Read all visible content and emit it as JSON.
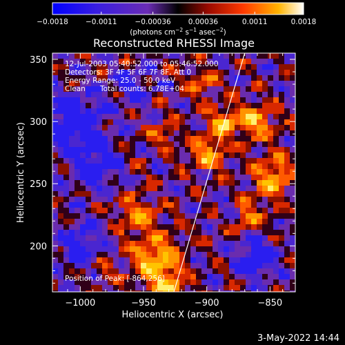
{
  "chart_data": {
    "type": "heatmap",
    "title": "Reconstructed RHESSI Image",
    "xlabel": "Heliocentric X (arcsec)",
    "ylabel": "Heliocentric Y (arcsec)",
    "xlim": [
      -1022,
      -830
    ],
    "ylim": [
      163,
      355
    ],
    "x_ticks": [
      -1000,
      -950,
      -900,
      -850
    ],
    "y_ticks": [
      200,
      250,
      300,
      350
    ],
    "x_tick_labels": [
      "−1000",
      "−950",
      "−900",
      "−850"
    ],
    "y_tick_labels": [
      "200",
      "250",
      "300",
      "350"
    ],
    "colorbar": {
      "range": [
        -0.0018,
        0.0018
      ],
      "ticks": [
        -0.0018,
        -0.0011,
        -0.00036,
        0.00036,
        0.0011,
        0.0018
      ],
      "tick_labels": [
        "−0.0018",
        "−0.0011",
        "−0.00036",
        "0.00036",
        "0.0011",
        "0.0018"
      ],
      "unit_main": "(photons cm",
      "unit_sup1": "−2",
      "unit_mid": " s",
      "unit_sup2": "−1",
      "unit_end": " asec",
      "unit_sup3": "−2",
      "unit_close": ")"
    },
    "annotations": {
      "time_range": "12-Jul-2003 05:40:52.000 to 05:46:52.000",
      "detectors": "Detectors: 3F 4F 5F 6F 7F 8F, Att 0",
      "energy": "Energy Range: 25.0 - 50.0 keV",
      "clean": "Clean",
      "counts": "Total counts: 6.78E+04",
      "peak": "Position of Peak: [-864,256]"
    },
    "limb_line": {
      "x": [
        -926,
        -870
      ],
      "y": [
        163,
        355
      ]
    },
    "peak_position": [
      -864,
      256
    ],
    "date_stamp": "3-May-2022 14:44",
    "colors": {
      "negative_low": "#1a14ff",
      "negative_mid": "#6a2cc8",
      "zero": "#000000",
      "positive_mid": "#e03000",
      "positive_high": "#ffa800",
      "positive_max": "#ffffff",
      "line": "#ffffff"
    }
  }
}
